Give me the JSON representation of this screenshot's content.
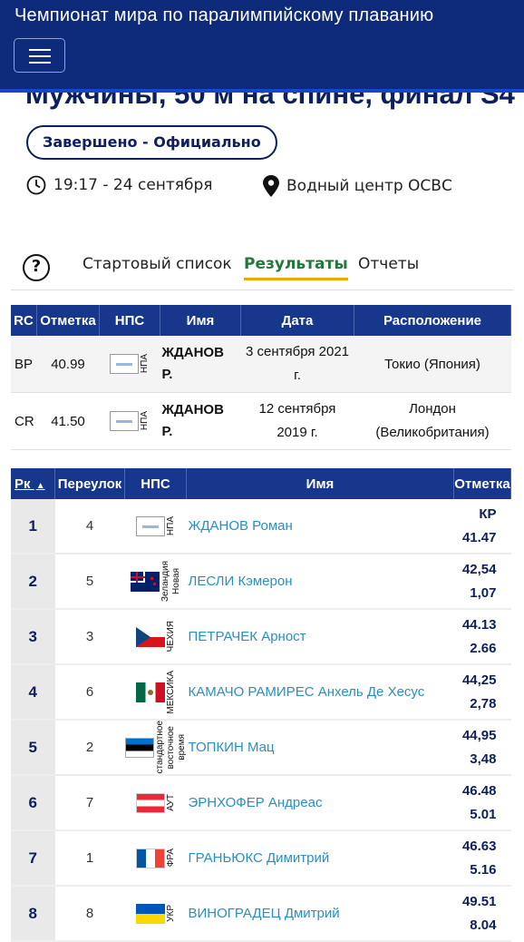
{
  "app": {
    "title": "Чемпионат мира по паралимпийскому плаванию"
  },
  "event": {
    "title": "Мужчины, 50 м на спине, финал S4",
    "status": "Завершено - Официально",
    "time": "19:17 - 24 сентября",
    "venue": "Водный центр ОСВС"
  },
  "tabs": {
    "start_list": "Стартовый список",
    "results": "Результаты",
    "reports": "Отчеты"
  },
  "records": {
    "headers": [
      "RC",
      "Отметка",
      "НПС",
      "Имя",
      "Дата",
      "Расположение"
    ],
    "rows": [
      {
        "rc": "ВР",
        "mark": "40.99",
        "npc": "НПА",
        "name1": "ЖДАНОВ",
        "name2": "Р.",
        "date1": "3 сентября 2021",
        "date2": "г.",
        "loc1": "Токио (Япония)",
        "loc2": ""
      },
      {
        "rc": "CR",
        "mark": "41.50",
        "npc": "НПА",
        "name1": "ЖДАНОВ",
        "name2": "Р.",
        "date1": "12 сентября",
        "date2": "2019 г.",
        "loc1": "Лондон",
        "loc2": "(Великобритания)"
      }
    ]
  },
  "results": {
    "headers": {
      "rank": "Рк",
      "lane": "Переулок",
      "npc": "НПС",
      "name": "Имя",
      "mark": "Отметка"
    },
    "rows": [
      {
        "rank": "1",
        "lane": "4",
        "npc": "НПА",
        "name": "ЖДАНОВ Роман",
        "m1": "КР",
        "m2": "41.47",
        "flag": "npa"
      },
      {
        "rank": "2",
        "lane": "5",
        "npc": "Зеландия",
        "npc2": "Новая",
        "name": "ЛЕСЛИ Кэмерон",
        "m1": "42,54",
        "m2": "1,07",
        "flag": "nzl"
      },
      {
        "rank": "3",
        "lane": "3",
        "npc": "ЧЕХИЯ",
        "name": "ПЕТРАЧЕК Арност",
        "m1": "44.13",
        "m2": "2.66",
        "flag": "cze"
      },
      {
        "rank": "4",
        "lane": "6",
        "npc": "МЕКСИКА",
        "name": "КАМАЧО РАМИРЕС Анхель Де Хесус",
        "m1": "44,25",
        "m2": "2,78",
        "flag": "mex"
      },
      {
        "rank": "5",
        "lane": "2",
        "npc": "стандартное",
        "npc2": "восточное",
        "npc3": "время",
        "name": "ТОПКИН Мац",
        "m1": "44,95",
        "m2": "3,48",
        "flag": "est"
      },
      {
        "rank": "6",
        "lane": "7",
        "npc": "АУТ",
        "name": "ЭРНХОФЕР Андреас",
        "m1": "46.48",
        "m2": "5.01",
        "flag": "aut"
      },
      {
        "rank": "7",
        "lane": "1",
        "npc": "ФРА",
        "name": "ГРАНЬЮКС Димитрий",
        "m1": "46.63",
        "m2": "5.16",
        "flag": "fra"
      },
      {
        "rank": "8",
        "lane": "8",
        "npc": "УКР",
        "name": "ВИНОГРАДЕЦ Дмитрий",
        "m1": "49.51",
        "m2": "8.04",
        "flag": "ukr"
      }
    ]
  }
}
